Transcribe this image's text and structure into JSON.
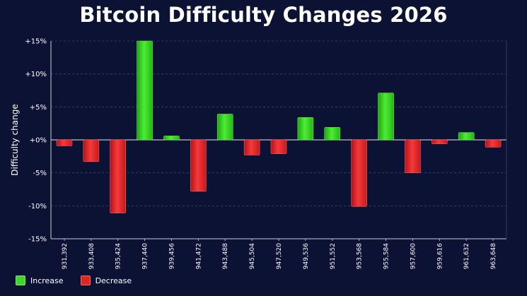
{
  "colors": {
    "background": "#0b1233",
    "increase": "#3cd82a",
    "decrease": "#e02424",
    "grid": "#3a4466",
    "axis": "#c8ccd8"
  },
  "chart_data": {
    "type": "bar",
    "title": "Bitcoin Difficulty Changes 2026",
    "xlabel": "",
    "ylabel": "Difficulty change",
    "ylim": [
      -15,
      15
    ],
    "yticks": [
      {
        "value": 15,
        "label": "+15%"
      },
      {
        "value": 10,
        "label": "+10%"
      },
      {
        "value": 5,
        "label": "+5%"
      },
      {
        "value": 0,
        "label": "+0%"
      },
      {
        "value": -5,
        "label": "-5%"
      },
      {
        "value": -10,
        "label": "-10%"
      },
      {
        "value": -15,
        "label": "-15%"
      }
    ],
    "grid": true,
    "legend_position": "bottom-left",
    "categories": [
      "931,392",
      "933,408",
      "935,424",
      "937,440",
      "939,456",
      "941,472",
      "943,488",
      "945,504",
      "947,520",
      "949,536",
      "951,552",
      "953,568",
      "955,584",
      "957,600",
      "959,616",
      "961,632",
      "963,648"
    ],
    "values": [
      -0.9,
      -3.3,
      -11.1,
      15.0,
      0.6,
      -7.8,
      3.9,
      -2.3,
      -2.1,
      3.4,
      1.9,
      -10.1,
      7.1,
      -5.0,
      -0.6,
      1.1,
      -1.1
    ],
    "legend": [
      {
        "label": "Increase",
        "color": "#3cd82a"
      },
      {
        "label": "Decrease",
        "color": "#e02424"
      }
    ]
  }
}
